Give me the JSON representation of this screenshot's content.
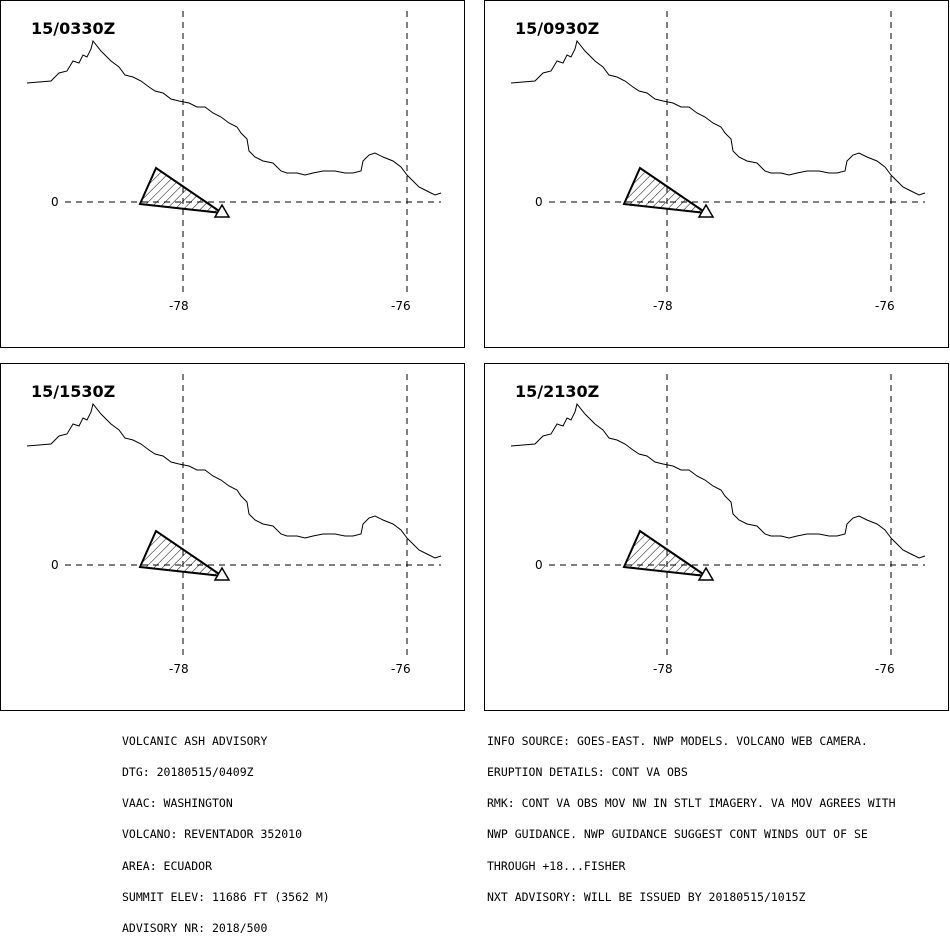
{
  "panels": [
    {
      "time": "15/0330Z"
    },
    {
      "time": "15/0930Z"
    },
    {
      "time": "15/1530Z"
    },
    {
      "time": "15/2130Z"
    }
  ],
  "axes": {
    "lat_label": "0",
    "lon_labels": [
      "-78",
      "-76"
    ]
  },
  "advisory_left": [
    "VOLCANIC ASH ADVISORY",
    "DTG: 20180515/0409Z",
    "VAAC: WASHINGTON",
    "VOLCANO: REVENTADOR 352010",
    "AREA: ECUADOR",
    "SUMMIT ELEV: 11686 FT (3562 M)",
    "ADVISORY NR: 2018/500"
  ],
  "advisory_right": [
    "INFO SOURCE: GOES-EAST. NWP MODELS. VOLCANO WEB CAMERA.",
    "ERUPTION DETAILS: CONT VA OBS",
    "RMK: CONT VA OBS MOV NW IN STLT IMAGERY. VA MOV AGREES WITH",
    "NWP GUIDANCE. NWP GUIDANCE SUGGEST CONT WINDS OUT OF SE",
    "THROUGH +18...FISHER",
    "NXT ADVISORY: WILL BE ISSUED BY 20180515/1015Z"
  ]
}
